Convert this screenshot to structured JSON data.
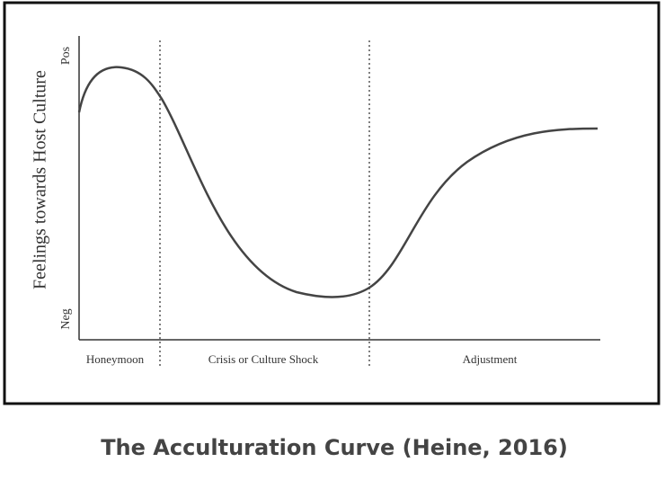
{
  "figure": {
    "y_axis_label": "Feelings towards Host Culture",
    "y_top_label": "Pos",
    "y_bottom_label": "Neg",
    "phases": [
      "Honeymoon",
      "Crisis or Culture Shock",
      "Adjustment"
    ],
    "caption": "The Acculturation Curve (Heine, 2016)"
  }
}
